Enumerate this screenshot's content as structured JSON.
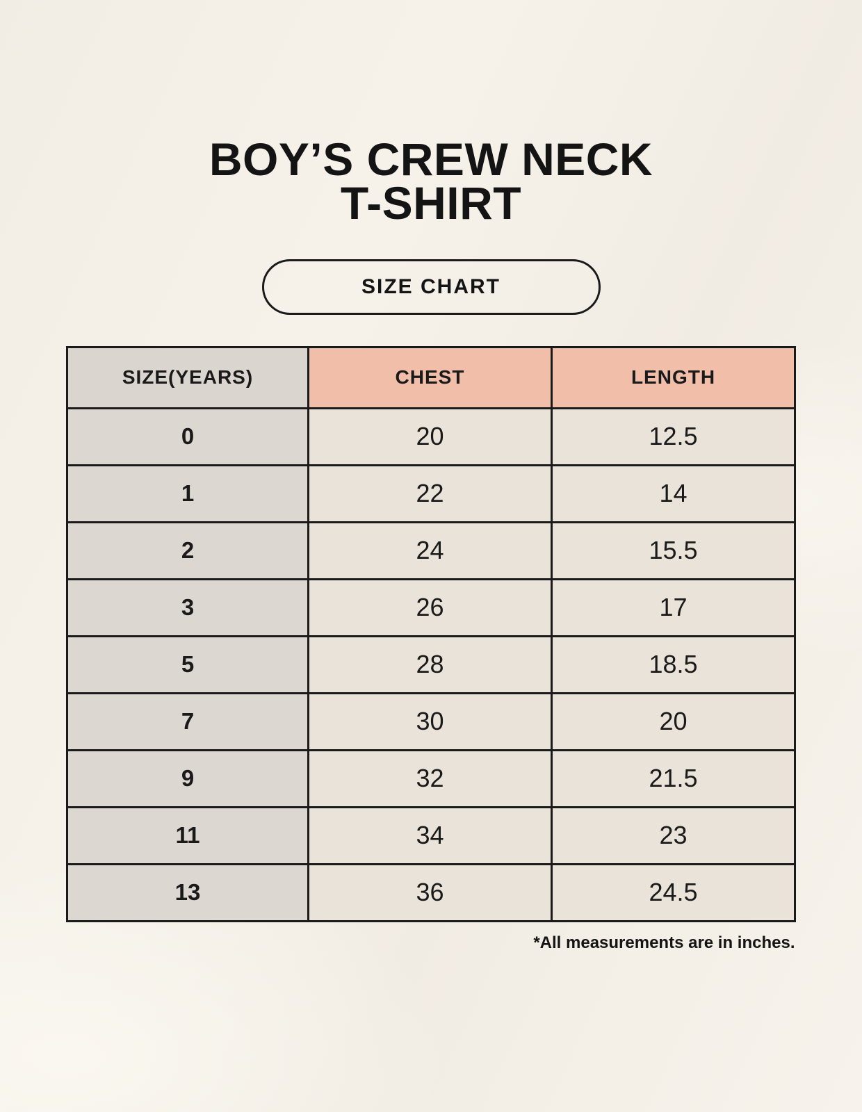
{
  "title": {
    "line1": "BOY’S CREW NECK",
    "line2": "T-SHIRT"
  },
  "badge": {
    "label": "SIZE CHART"
  },
  "footnote": "*All measurements are in inches.",
  "colors": {
    "page_background": "#f5f1e9",
    "header_accent": "#f1bea9",
    "header_gray": "#dbd5d0",
    "row_label_background": "#ddd7d2",
    "cell_background": "#e9e3d9",
    "border": "#1a1a1a",
    "text": "#141414"
  },
  "chart_data": {
    "type": "table",
    "title": "BOY’S CREW NECK T-SHIRT — SIZE CHART",
    "columns": [
      "SIZE(YEARS)",
      "CHEST",
      "LENGTH"
    ],
    "rows": [
      [
        "0",
        "20",
        "12.5"
      ],
      [
        "1",
        "22",
        "14"
      ],
      [
        "2",
        "24",
        "15.5"
      ],
      [
        "3",
        "26",
        "17"
      ],
      [
        "5",
        "28",
        "18.5"
      ],
      [
        "7",
        "30",
        "20"
      ],
      [
        "9",
        "32",
        "21.5"
      ],
      [
        "11",
        "34",
        "23"
      ],
      [
        "13",
        "36",
        "24.5"
      ]
    ],
    "units": "inches"
  }
}
